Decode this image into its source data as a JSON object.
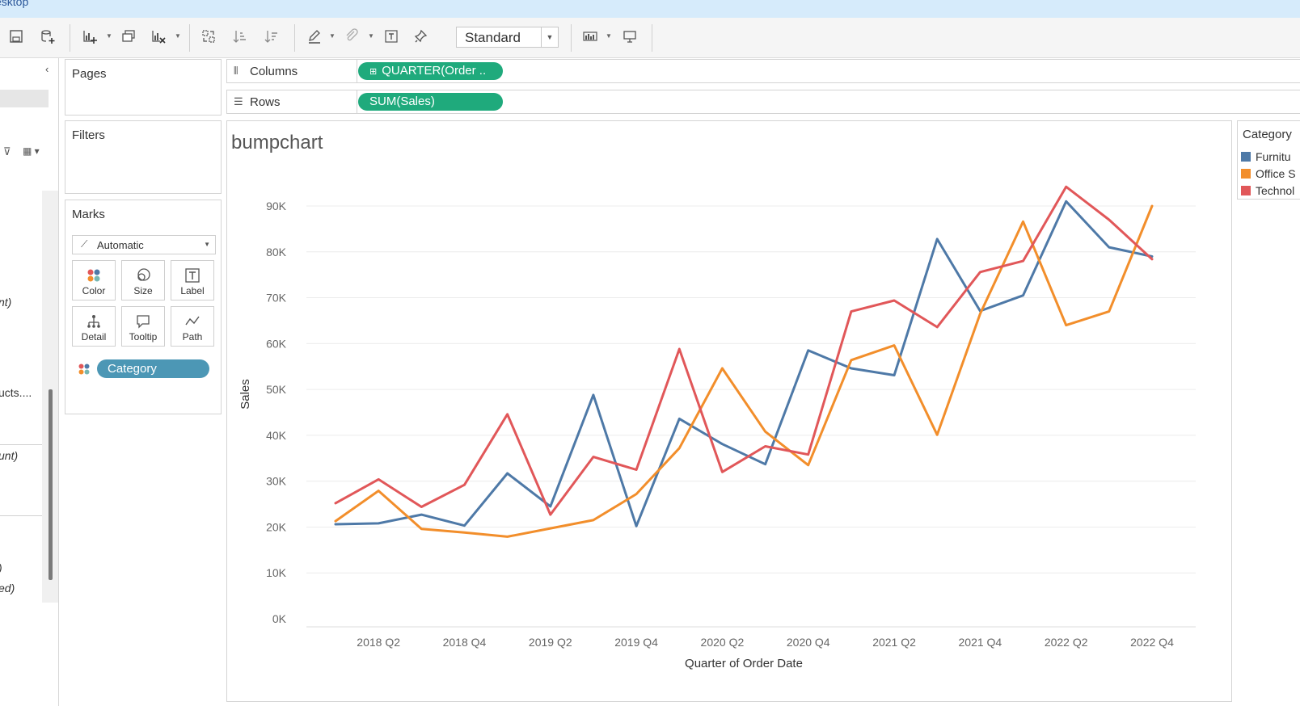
{
  "window": {
    "title_fragment": "esktop"
  },
  "toolbar": {
    "fit_select": "Standard",
    "icons": [
      "save-icon",
      "new-datasource-icon",
      "new-worksheet-icon",
      "duplicate-sheet-icon",
      "clear-sheet-icon",
      "swap-icon",
      "sort-ascending-icon",
      "sort-descending-icon",
      "highlight-icon",
      "group-icon",
      "text-label-icon",
      "pin-icon",
      "show-me-icon",
      "presentation-icon"
    ]
  },
  "left_pane": {
    "fragments": [
      "nt)",
      "ucts....",
      "unt)",
      ")",
      "ed)"
    ]
  },
  "pages": {
    "title": "Pages"
  },
  "filters": {
    "title": "Filters"
  },
  "marks": {
    "title": "Marks",
    "type": "Automatic",
    "buttons": [
      "Color",
      "Size",
      "Label",
      "Detail",
      "Tooltip",
      "Path"
    ],
    "color_pill": "Category"
  },
  "shelves": {
    "columns_label": "Columns",
    "columns_pill": "QUARTER(Order ..",
    "rows_label": "Rows",
    "rows_pill": "SUM(Sales)"
  },
  "legend": {
    "title": "Category",
    "items": [
      {
        "label": "Furnitu",
        "color": "#4e79a7"
      },
      {
        "label": "Office S",
        "color": "#f28e2b"
      },
      {
        "label": "Technol",
        "color": "#e15759"
      }
    ]
  },
  "chart_data": {
    "type": "line",
    "title": "bumpchart",
    "xlabel": "Quarter of Order Date",
    "ylabel": "Sales",
    "ylim": [
      0,
      95000
    ],
    "yticks": [
      0,
      10000,
      20000,
      30000,
      40000,
      50000,
      60000,
      70000,
      80000,
      90000
    ],
    "ytick_labels": [
      "0K",
      "10K",
      "20K",
      "30K",
      "40K",
      "50K",
      "60K",
      "70K",
      "80K",
      "90K"
    ],
    "categories": [
      "2018 Q1",
      "2018 Q2",
      "2018 Q3",
      "2018 Q4",
      "2019 Q1",
      "2019 Q2",
      "2019 Q3",
      "2019 Q4",
      "2020 Q1",
      "2020 Q2",
      "2020 Q3",
      "2020 Q4",
      "2021 Q1",
      "2021 Q2",
      "2021 Q3",
      "2021 Q4",
      "2022 Q1",
      "2022 Q2",
      "2022 Q3",
      "2022 Q4"
    ],
    "xtick_labels": [
      "2018 Q2",
      "2018 Q4",
      "2019 Q2",
      "2019 Q4",
      "2020 Q2",
      "2020 Q4",
      "2021 Q2",
      "2021 Q4",
      "2022 Q2",
      "2022 Q4"
    ],
    "grid": true,
    "legend_position": "right",
    "series": [
      {
        "name": "Furnitu",
        "color": "#4e79a7",
        "values": [
          20600,
          20800,
          22700,
          20300,
          31700,
          24500,
          48800,
          20200,
          43600,
          38100,
          33700,
          58500,
          54600,
          53100,
          82800,
          67100,
          70500,
          91000,
          81000,
          79000
        ]
      },
      {
        "name": "Office S",
        "color": "#f28e2b",
        "values": [
          21300,
          27900,
          19600,
          18800,
          17900,
          19700,
          21500,
          27200,
          37200,
          54600,
          40800,
          33500,
          56400,
          59600,
          40100,
          66500,
          86600,
          64000,
          67000,
          90000
        ]
      },
      {
        "name": "Technol",
        "color": "#e15759",
        "values": [
          25200,
          30400,
          24400,
          29200,
          44600,
          22700,
          35300,
          32500,
          58800,
          32000,
          37600,
          35800,
          67000,
          69400,
          63600,
          75600,
          78000,
          94200,
          87000,
          78400
        ]
      }
    ]
  }
}
